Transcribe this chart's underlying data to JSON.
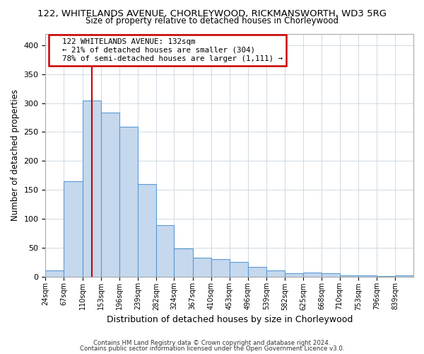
{
  "title": "122, WHITELANDS AVENUE, CHORLEYWOOD, RICKMANSWORTH, WD3 5RG",
  "subtitle": "Size of property relative to detached houses in Chorleywood",
  "xlabel": "Distribution of detached houses by size in Chorleywood",
  "ylabel": "Number of detached properties",
  "bar_edges": [
    24,
    67,
    110,
    153,
    196,
    239,
    282,
    324,
    367,
    410,
    453,
    496,
    539,
    582,
    625,
    668,
    710,
    753,
    796,
    839,
    882
  ],
  "bar_heights": [
    10,
    165,
    304,
    283,
    259,
    160,
    89,
    49,
    32,
    30,
    25,
    17,
    10,
    5,
    7,
    5,
    2,
    2,
    1,
    2
  ],
  "bar_color": "#c5d8ed",
  "bar_edge_color": "#5b9bd5",
  "reference_line_x": 132,
  "reference_line_color": "#cc0000",
  "ylim": [
    0,
    420
  ],
  "yticks": [
    0,
    50,
    100,
    150,
    200,
    250,
    300,
    350,
    400
  ],
  "annotation_title": "122 WHITELANDS AVENUE: 132sqm",
  "annotation_line1": "← 21% of detached houses are smaller (304)",
  "annotation_line2": "78% of semi-detached houses are larger (1,111) →",
  "annotation_box_color": "#cc0000",
  "footer_line1": "Contains HM Land Registry data © Crown copyright and database right 2024.",
  "footer_line2": "Contains public sector information licensed under the Open Government Licence v3.0.",
  "bg_color": "#ffffff",
  "plot_bg_color": "#ffffff"
}
